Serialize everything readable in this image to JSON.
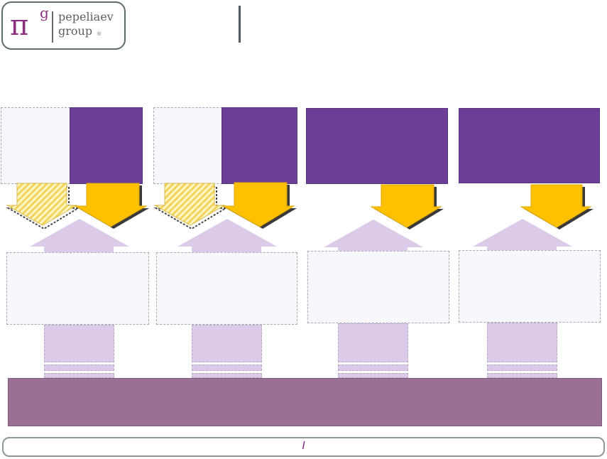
{
  "logo": {
    "symbol": "π",
    "superscript": "g",
    "line1": "pepeliaev",
    "line2": "group",
    "reg_mark": "®"
  },
  "footer": {
    "text": "I"
  },
  "colors": {
    "accent_purple": "#6b3f98",
    "arrow_gold": "#ffc000",
    "base_band": "#9b6f96",
    "lavender": "#dccbe8"
  }
}
